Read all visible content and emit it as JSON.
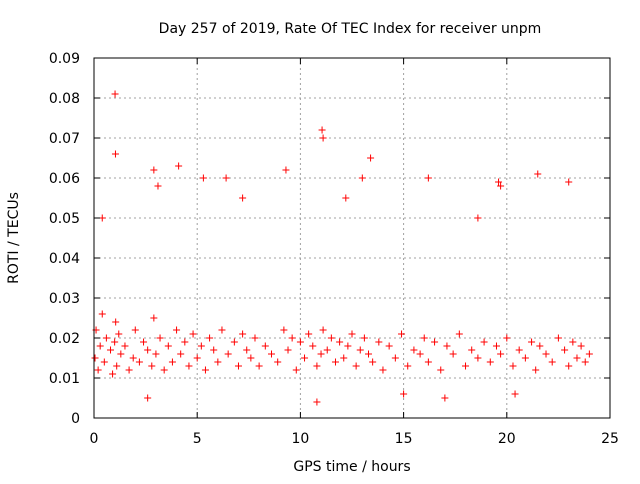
{
  "chart_data": {
    "type": "scatter",
    "title": "Day 257 of 2019, Rate Of TEC Index for receiver unpm",
    "xlabel": "GPS time / hours",
    "ylabel": "ROTI / TECUs",
    "xlim": [
      0,
      25
    ],
    "ylim": [
      0,
      0.09
    ],
    "xticks": [
      0,
      5,
      10,
      15,
      20,
      25
    ],
    "xtick_labels": [
      "0",
      "5",
      "10",
      "15",
      "20",
      "25"
    ],
    "yticks": [
      0,
      0.01,
      0.02,
      0.03,
      0.04,
      0.05,
      0.06,
      0.07,
      0.08,
      0.09
    ],
    "ytick_labels": [
      "0",
      "0.01",
      "0.02",
      "0.03",
      "0.04",
      "0.05",
      "0.06",
      "0.07",
      "0.08",
      "0.09"
    ],
    "grid": true,
    "marker": "plus",
    "color": "#ff0000",
    "series": [
      {
        "name": "ROTI",
        "x": [
          0.05,
          0.1,
          0.2,
          0.3,
          0.4,
          0.5,
          0.6,
          0.8,
          0.9,
          1.0,
          1.05,
          1.1,
          1.2,
          1.3,
          1.5,
          1.7,
          1.9,
          2.0,
          2.2,
          2.4,
          2.6,
          2.8,
          2.9,
          3.0,
          3.2,
          3.4,
          3.6,
          3.8,
          4.0,
          4.2,
          4.4,
          4.6,
          4.8,
          5.0,
          5.2,
          5.4,
          5.6,
          5.8,
          6.0,
          6.2,
          6.5,
          6.8,
          7.0,
          7.2,
          7.4,
          7.6,
          7.8,
          8.0,
          8.3,
          8.6,
          8.9,
          9.2,
          9.4,
          9.6,
          9.8,
          10.0,
          10.2,
          10.4,
          10.6,
          10.8,
          11.0,
          11.1,
          11.3,
          11.5,
          11.7,
          11.9,
          12.1,
          12.3,
          12.5,
          12.7,
          12.9,
          13.1,
          13.3,
          13.5,
          13.8,
          14.0,
          14.3,
          14.6,
          14.9,
          15.2,
          15.5,
          15.8,
          16.0,
          16.2,
          16.5,
          16.8,
          17.1,
          17.4,
          17.7,
          18.0,
          18.3,
          18.6,
          18.9,
          19.2,
          19.5,
          19.7,
          20.0,
          20.3,
          20.6,
          20.9,
          21.2,
          21.4,
          21.6,
          21.9,
          22.2,
          22.5,
          22.8,
          23.0,
          23.2,
          23.4,
          23.6,
          23.8,
          24.0,
          1.02,
          1.04,
          2.9,
          3.1,
          5.3,
          9.3,
          11.05,
          11.1,
          12.2,
          13.4,
          16.2,
          19.6,
          19.7,
          21.5,
          23.0,
          0.4,
          4.1,
          6.4,
          7.2,
          13.0,
          18.6,
          2.6,
          10.8,
          15.0,
          17.0,
          20.4
        ],
        "y": [
          0.015,
          0.022,
          0.012,
          0.018,
          0.026,
          0.014,
          0.02,
          0.017,
          0.011,
          0.019,
          0.024,
          0.013,
          0.021,
          0.016,
          0.018,
          0.012,
          0.015,
          0.022,
          0.014,
          0.019,
          0.017,
          0.013,
          0.025,
          0.016,
          0.02,
          0.012,
          0.018,
          0.014,
          0.022,
          0.016,
          0.019,
          0.013,
          0.021,
          0.015,
          0.018,
          0.012,
          0.02,
          0.017,
          0.014,
          0.022,
          0.016,
          0.019,
          0.013,
          0.021,
          0.017,
          0.015,
          0.02,
          0.013,
          0.018,
          0.016,
          0.014,
          0.022,
          0.017,
          0.02,
          0.012,
          0.019,
          0.015,
          0.021,
          0.018,
          0.013,
          0.016,
          0.022,
          0.017,
          0.02,
          0.014,
          0.019,
          0.015,
          0.018,
          0.021,
          0.013,
          0.017,
          0.02,
          0.016,
          0.014,
          0.019,
          0.012,
          0.018,
          0.015,
          0.021,
          0.013,
          0.017,
          0.016,
          0.02,
          0.014,
          0.019,
          0.012,
          0.018,
          0.016,
          0.021,
          0.013,
          0.017,
          0.015,
          0.019,
          0.014,
          0.018,
          0.016,
          0.02,
          0.013,
          0.017,
          0.015,
          0.019,
          0.012,
          0.018,
          0.016,
          0.014,
          0.02,
          0.017,
          0.013,
          0.019,
          0.015,
          0.018,
          0.014,
          0.016,
          0.081,
          0.066,
          0.062,
          0.058,
          0.06,
          0.062,
          0.072,
          0.07,
          0.055,
          0.065,
          0.06,
          0.059,
          0.058,
          0.061,
          0.059,
          0.05,
          0.063,
          0.06,
          0.055,
          0.06,
          0.05,
          0.005,
          0.004,
          0.006,
          0.005,
          0.006
        ]
      }
    ]
  }
}
